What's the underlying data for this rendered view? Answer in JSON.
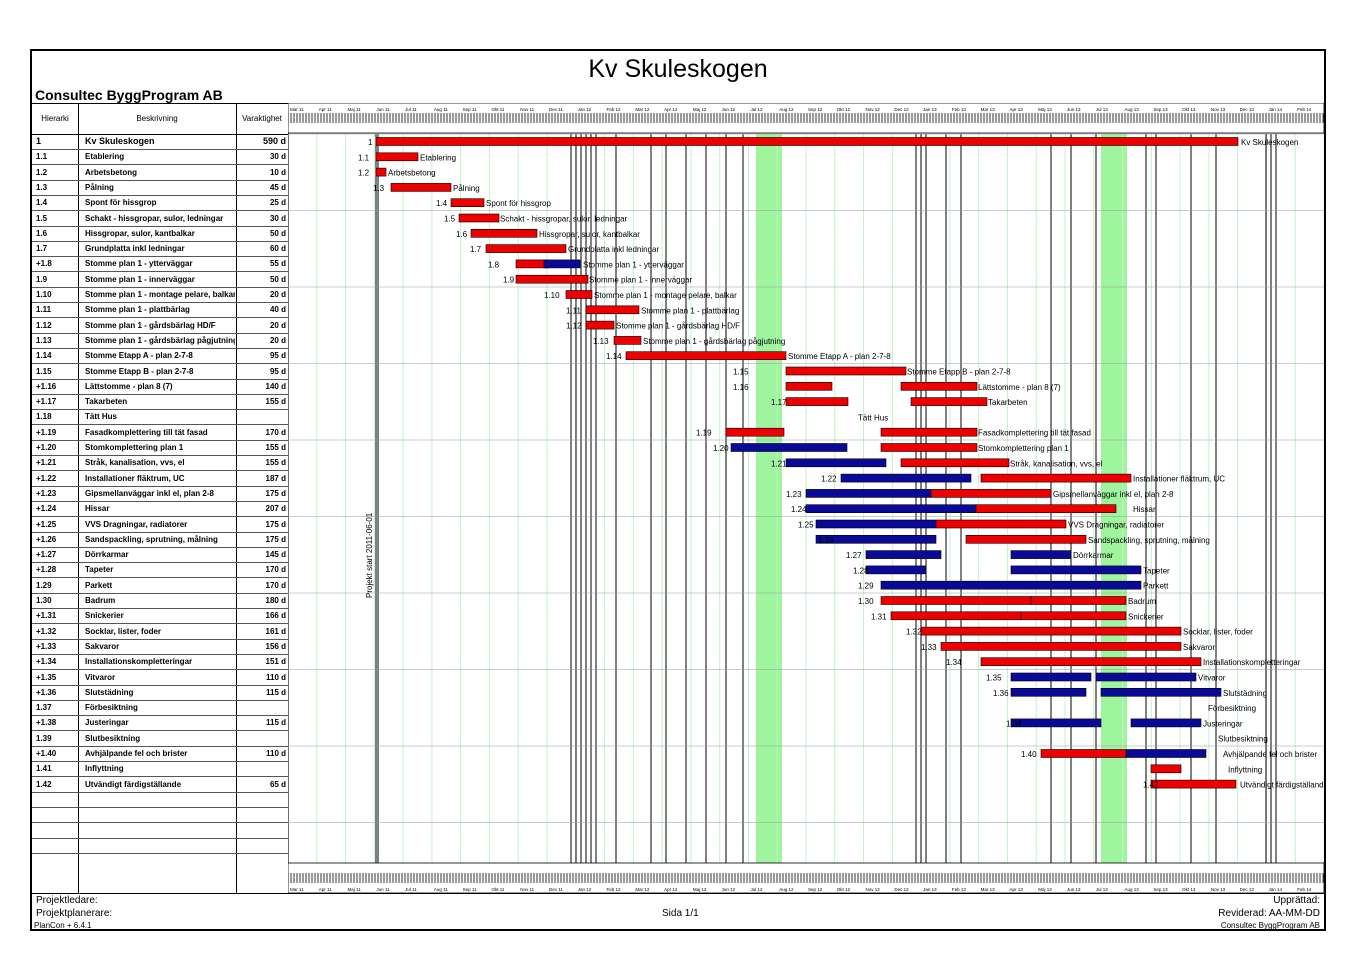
{
  "title": "Kv Skuleskogen",
  "company": "Consultec ByggProgram AB",
  "columns": {
    "hierarchy": "Hierarki",
    "description": "Beskrivning",
    "duration": "Varaktighet"
  },
  "timeline_months": [
    "Mar 11",
    "Apr 11",
    "Maj 11",
    "Jun 11",
    "Jul 11",
    "Aug 11",
    "Sep 11",
    "Okt 11",
    "Nov 11",
    "Dec 11",
    "Jan 12",
    "Feb 12",
    "Mar 12",
    "Apr 12",
    "Maj 12",
    "Jun 12",
    "Jul 12",
    "Aug 12",
    "Sep 12",
    "Okt 12",
    "Nov 12",
    "Dec 12",
    "Jan 13",
    "Feb 13",
    "Mar 13",
    "Apr 13",
    "Maj 13",
    "Jun 13",
    "Jul 13",
    "Aug 13",
    "Sep 13",
    "Okt 13",
    "Nov 13",
    "Dec 13",
    "Jan 14",
    "Feb 14"
  ],
  "project_start_label": "Projekt start 2011-06-01",
  "tasks": [
    {
      "id": "1",
      "name": "Kv Skuleskogen",
      "dur": "590 d"
    },
    {
      "id": "1.1",
      "name": "Etablering",
      "dur": "30 d"
    },
    {
      "id": "1.2",
      "name": "Arbetsbetong",
      "dur": "10 d"
    },
    {
      "id": "1.3",
      "name": "Pålning",
      "dur": "45 d"
    },
    {
      "id": "1.4",
      "name": "Spont för hissgrop",
      "dur": "25 d"
    },
    {
      "id": "1.5",
      "name": "Schakt - hissgropar, sulor, ledningar",
      "dur": "30 d"
    },
    {
      "id": "1.6",
      "name": "Hissgropar, sulor, kantbalkar",
      "dur": "50 d"
    },
    {
      "id": "1.7",
      "name": "Grundplatta inkl ledningar",
      "dur": "60 d"
    },
    {
      "id": "+1.8",
      "name": "Stomme plan 1 - ytterväggar",
      "dur": "55 d"
    },
    {
      "id": "1.9",
      "name": "Stomme plan 1 - innerväggar",
      "dur": "50 d"
    },
    {
      "id": "1.10",
      "name": "Stomme plan 1 - montage pelare, balkar",
      "dur": "20 d"
    },
    {
      "id": "1.11",
      "name": "Stomme plan 1 - plattbärlag",
      "dur": "40 d"
    },
    {
      "id": "1.12",
      "name": "Stomme plan 1 - gårdsbärlag HD/F",
      "dur": "20 d"
    },
    {
      "id": "1.13",
      "name": "Stomme plan 1 - gårdsbärlag pågjutning",
      "dur": "20 d"
    },
    {
      "id": "1.14",
      "name": "Stomme Etapp A  - plan 2-7-8",
      "dur": "95 d"
    },
    {
      "id": "1.15",
      "name": "Stomme Etapp B - plan 2-7-8",
      "dur": "95 d"
    },
    {
      "id": "+1.16",
      "name": "Lättstomme - plan 8 (7)",
      "dur": "140 d"
    },
    {
      "id": "+1.17",
      "name": "Takarbeten",
      "dur": "155 d"
    },
    {
      "id": "1.18",
      "name": "Tätt Hus",
      "dur": ""
    },
    {
      "id": "+1.19",
      "name": "Fasadkomplettering till tät fasad",
      "dur": "170 d"
    },
    {
      "id": "+1.20",
      "name": "Stomkomplettering plan 1",
      "dur": "155 d"
    },
    {
      "id": "+1.21",
      "name": "Stråk, kanalisation, vvs, el",
      "dur": "155 d"
    },
    {
      "id": "+1.22",
      "name": "Installationer fläktrum, UC",
      "dur": "187 d"
    },
    {
      "id": "+1.23",
      "name": "Gipsmellanväggar inkl el, plan 2-8",
      "dur": "175 d"
    },
    {
      "id": "+1.24",
      "name": "Hissar",
      "dur": "207 d"
    },
    {
      "id": "+1.25",
      "name": "VVS Dragningar, radiatorer",
      "dur": "175 d"
    },
    {
      "id": "+1.26",
      "name": "Sandspackling, sprutning, målning",
      "dur": "175 d"
    },
    {
      "id": "+1.27",
      "name": "Dörrkarmar",
      "dur": "145 d"
    },
    {
      "id": "+1.28",
      "name": "Tapeter",
      "dur": "170 d"
    },
    {
      "id": "1.29",
      "name": "Parkett",
      "dur": "170 d"
    },
    {
      "id": "1.30",
      "name": "Badrum",
      "dur": "180 d"
    },
    {
      "id": "+1.31",
      "name": "Snickerier",
      "dur": "166 d"
    },
    {
      "id": "+1.32",
      "name": "Socklar, lister, foder",
      "dur": "161 d"
    },
    {
      "id": "+1.33",
      "name": "Sakvaror",
      "dur": "156 d"
    },
    {
      "id": "+1.34",
      "name": "Installationskompletteringar",
      "dur": "151 d"
    },
    {
      "id": "+1.35",
      "name": "Vitvaror",
      "dur": "110 d"
    },
    {
      "id": "+1.36",
      "name": "Slutstädning",
      "dur": "115 d"
    },
    {
      "id": "1.37",
      "name": "Förbesiktning",
      "dur": ""
    },
    {
      "id": "+1.38",
      "name": "Justeringar",
      "dur": "115 d"
    },
    {
      "id": "1.39",
      "name": "Slutbesiktning",
      "dur": ""
    },
    {
      "id": "+1.40",
      "name": "Avhjälpande fel och brister",
      "dur": "110 d"
    },
    {
      "id": "1.41",
      "name": "Inflyttning",
      "dur": ""
    },
    {
      "id": "1.42",
      "name": "Utvändigt färdigställande",
      "dur": "65 d"
    }
  ],
  "footer": {
    "projektledare": "Projektledare:",
    "projektplanerare": "Projektplanerare:",
    "version": "PlanCon + 6.4.1",
    "page": "Sida 1/1",
    "upprattad": "Upprättad:",
    "reviderad": "Reviderad: AA-MM-DD",
    "company_footer": "Consultec ByggProgram AB"
  },
  "colors": {
    "bar_red": "#ee0000",
    "bar_blue": "#0a0a99",
    "holiday_green": "#9ef59e",
    "border": "#000000"
  }
}
